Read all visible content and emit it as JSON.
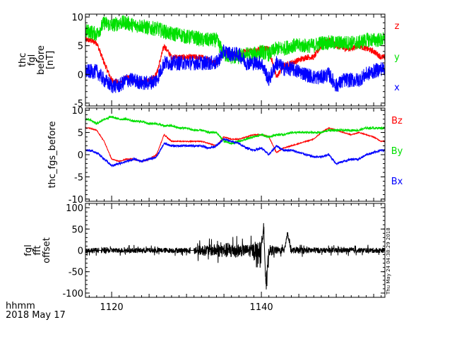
{
  "chart_data": [
    {
      "type": "line",
      "ylabel_lines": [
        "thc",
        "fgl",
        "before",
        "[nT]"
      ],
      "ylim": [
        -5.5,
        10.5
      ],
      "yticks": [
        -5,
        0,
        5,
        10
      ],
      "xlim": [
        1116.5,
        1156.5
      ],
      "series": [
        {
          "name": "z",
          "color": "#ff0000",
          "x": [
            1117,
            1118,
            1119,
            1120,
            1121,
            1122,
            1123,
            1124,
            1125,
            1126,
            1127,
            1128,
            1129,
            1130,
            1131,
            1132,
            1133,
            1134,
            1135,
            1136,
            1137,
            1138,
            1139,
            1140,
            1141,
            1142,
            1143,
            1144,
            1145,
            1146,
            1147,
            1148,
            1149,
            1150,
            1151,
            1152,
            1153,
            1154,
            1155,
            1156
          ],
          "values": [
            6,
            5.5,
            2,
            -1,
            -1.5,
            -0.5,
            -1,
            -1.5,
            -1,
            0,
            5,
            3,
            3,
            3,
            3,
            3,
            2.5,
            2,
            4,
            3.5,
            3.5,
            4,
            4,
            4.5,
            4.5,
            -0.5,
            1.5,
            2,
            2.5,
            3,
            3,
            5,
            6,
            5,
            4.5,
            4.5,
            5,
            4.5,
            4,
            3
          ]
        },
        {
          "name": "y",
          "color": "#00e000",
          "x": [
            1117,
            1118,
            1119,
            1120,
            1121,
            1122,
            1123,
            1124,
            1125,
            1126,
            1127,
            1128,
            1129,
            1130,
            1131,
            1132,
            1133,
            1134,
            1135,
            1136,
            1137,
            1138,
            1139,
            1140,
            1141,
            1142,
            1143,
            1144,
            1145,
            1146,
            1147,
            1148,
            1149,
            1150,
            1151,
            1152,
            1153,
            1154,
            1155,
            1156
          ],
          "values": [
            7.5,
            7,
            9,
            8.5,
            9,
            9,
            8.5,
            8.5,
            8,
            8,
            7.5,
            7,
            7,
            6.5,
            6.5,
            6,
            6,
            6,
            3.5,
            3,
            3,
            3.5,
            3.5,
            4,
            3.5,
            4.5,
            4.5,
            5,
            5,
            5,
            5,
            5.5,
            5.5,
            5.5,
            5.5,
            5.5,
            5.5,
            6,
            6,
            6
          ]
        },
        {
          "name": "x",
          "color": "#0000ff",
          "x": [
            1117,
            1118,
            1119,
            1120,
            1121,
            1122,
            1123,
            1124,
            1125,
            1126,
            1127,
            1128,
            1129,
            1130,
            1131,
            1132,
            1133,
            1134,
            1135,
            1136,
            1137,
            1138,
            1139,
            1140,
            1141,
            1142,
            1143,
            1144,
            1145,
            1146,
            1147,
            1148,
            1149,
            1150,
            1151,
            1152,
            1153,
            1154,
            1155,
            1156
          ],
          "values": [
            0.5,
            0.5,
            -1,
            -2,
            -2,
            -1,
            -1,
            -1.5,
            -1.5,
            -1,
            2,
            2,
            2,
            2,
            2,
            2,
            2,
            2,
            4,
            3.5,
            3.5,
            2,
            2,
            2,
            -1,
            2,
            1,
            1,
            0.5,
            0,
            -0.5,
            -0.5,
            0,
            -2,
            -1,
            -1,
            -1,
            0,
            0.5,
            1
          ]
        }
      ]
    },
    {
      "type": "line",
      "ylabel": "thc_fgs_before",
      "ylim": [
        -10.5,
        10.5
      ],
      "yticks": [
        -10,
        -5,
        0,
        5,
        10
      ],
      "xlim": [
        1116.5,
        1156.5
      ],
      "series": [
        {
          "name": "Bz",
          "color": "#ff0000",
          "x": [
            1117,
            1118,
            1119,
            1120,
            1121,
            1122,
            1123,
            1124,
            1125,
            1126,
            1127,
            1128,
            1129,
            1130,
            1131,
            1132,
            1133,
            1134,
            1135,
            1136,
            1137,
            1138,
            1139,
            1140,
            1141,
            1142,
            1143,
            1144,
            1145,
            1146,
            1147,
            1148,
            1149,
            1150,
            1151,
            1152,
            1153,
            1154,
            1155,
            1156
          ],
          "values": [
            6,
            5.5,
            3,
            -1,
            -1.5,
            -1,
            -1,
            -1.5,
            -1,
            0,
            4.5,
            3,
            3,
            3,
            3,
            3,
            2.5,
            2,
            4,
            3.5,
            3.5,
            4,
            4.5,
            4.5,
            4,
            0.5,
            1.5,
            2,
            2.5,
            3,
            3.5,
            5,
            6,
            5.5,
            5,
            4.5,
            5,
            4.5,
            4,
            3
          ]
        },
        {
          "name": "By",
          "color": "#00e000",
          "x": [
            1117,
            1118,
            1119,
            1120,
            1121,
            1122,
            1123,
            1124,
            1125,
            1126,
            1127,
            1128,
            1129,
            1130,
            1131,
            1132,
            1133,
            1134,
            1135,
            1136,
            1137,
            1138,
            1139,
            1140,
            1141,
            1142,
            1143,
            1144,
            1145,
            1146,
            1147,
            1148,
            1149,
            1150,
            1151,
            1152,
            1153,
            1154,
            1155,
            1156
          ],
          "values": [
            8,
            7,
            8,
            8.5,
            8,
            8,
            7.5,
            7.5,
            7,
            7,
            6.5,
            6.5,
            6,
            6,
            5.5,
            5.5,
            5,
            5,
            3,
            2.5,
            3,
            3.5,
            4,
            4.5,
            4,
            4.5,
            4.5,
            5,
            5,
            5,
            5,
            5,
            5.5,
            5.5,
            5.5,
            5.5,
            5.5,
            6,
            6,
            6
          ]
        },
        {
          "name": "Bx",
          "color": "#0000ff",
          "x": [
            1117,
            1118,
            1119,
            1120,
            1121,
            1122,
            1123,
            1124,
            1125,
            1126,
            1127,
            1128,
            1129,
            1130,
            1131,
            1132,
            1133,
            1134,
            1135,
            1136,
            1137,
            1138,
            1139,
            1140,
            1141,
            1142,
            1143,
            1144,
            1145,
            1146,
            1147,
            1148,
            1149,
            1150,
            1151,
            1152,
            1153,
            1154,
            1155,
            1156
          ],
          "values": [
            1,
            0.5,
            -1,
            -2.5,
            -2,
            -1.5,
            -1,
            -1.5,
            -1,
            -0.5,
            2.5,
            2,
            2,
            2,
            2,
            2,
            1.5,
            2,
            3.5,
            3,
            2.5,
            1.5,
            1,
            1.5,
            0,
            2,
            1,
            1,
            0.5,
            0,
            -0.5,
            -0.5,
            0,
            -2,
            -1.5,
            -1,
            -1,
            0,
            0.5,
            1
          ]
        }
      ]
    },
    {
      "type": "line",
      "ylabel_lines": [
        "fgl",
        "fft",
        "offset"
      ],
      "ylim": [
        -110,
        110
      ],
      "yticks": [
        -100,
        -50,
        0,
        50,
        100
      ],
      "xlim": [
        1116.5,
        1156.5
      ],
      "series": [
        {
          "color": "#000000",
          "x": [
            1117,
            1118,
            1119,
            1120,
            1121,
            1122,
            1123,
            1124,
            1125,
            1126,
            1127,
            1128,
            1129,
            1130,
            1131,
            1132,
            1133,
            1134,
            1135,
            1136,
            1137,
            1138,
            1139,
            1140,
            1140.3,
            1140.6,
            1141,
            1142,
            1143,
            1143.5,
            1144,
            1145,
            1146,
            1147,
            1148,
            1149,
            1150,
            1151,
            1152,
            1153,
            1154,
            1155,
            1156
          ],
          "values": [
            0,
            0,
            0,
            0,
            0,
            0,
            0,
            0,
            0,
            0,
            0,
            0,
            0,
            0,
            0,
            0,
            0,
            0,
            0,
            0,
            0,
            0,
            0,
            0,
            70,
            -90,
            0,
            0,
            0,
            40,
            0,
            0,
            0,
            0,
            0,
            0,
            0,
            0,
            0,
            0,
            0,
            0,
            0
          ],
          "noise_envelope": [
            10,
            10,
            12,
            10,
            10,
            10,
            10,
            10,
            10,
            10,
            10,
            10,
            10,
            10,
            18,
            20,
            22,
            25,
            28,
            32,
            25,
            22,
            30,
            35,
            30,
            30,
            22,
            15,
            12,
            12,
            12,
            12,
            12,
            12,
            10,
            10,
            10,
            10,
            10,
            10,
            10,
            10,
            10
          ],
          "gaps": [
            [
              1118.3,
              1118.6
            ],
            [
              1130.5,
              1131
            ]
          ]
        }
      ]
    }
  ],
  "x_ticks": [
    1120,
    1140
  ],
  "footer": {
    "line1": "hhmm",
    "line2": "2018 May 17"
  },
  "stamp": "Thu May 24 04:38:29 2018",
  "colors": {
    "red": "#ff0000",
    "green": "#00e000",
    "blue": "#0000ff",
    "black": "#000000"
  }
}
